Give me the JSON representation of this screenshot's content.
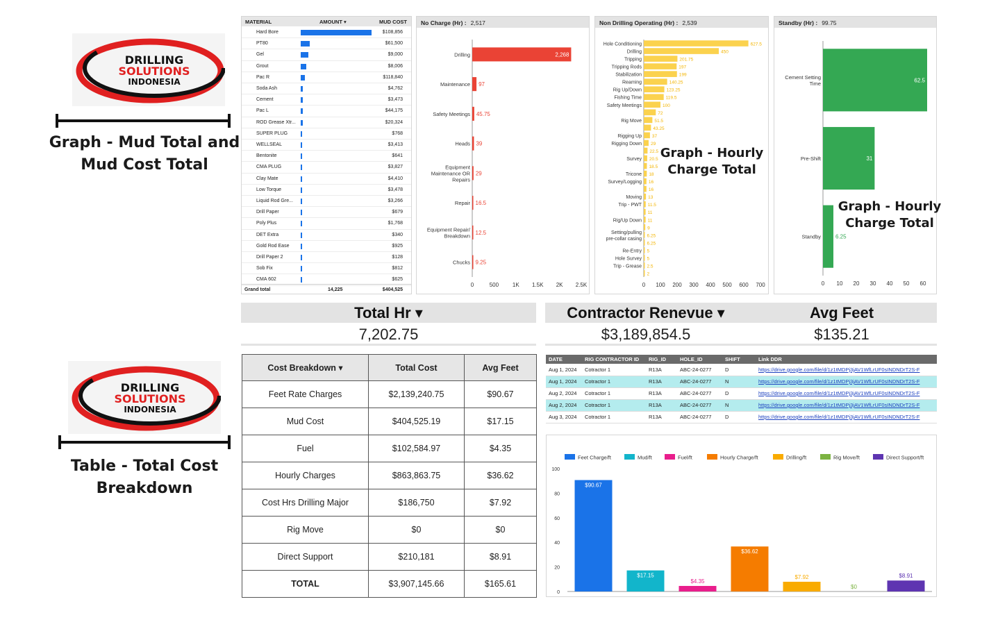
{
  "logo": {
    "line1": "DRILLING",
    "line2": "SOLUTIONS",
    "line3": "INDONESIA"
  },
  "captions": {
    "graph_mud": [
      "Graph - Mud Total and",
      "Mud Cost Total"
    ],
    "table_cost": [
      "Table - Total Cost",
      "Breakdown"
    ],
    "graph_hourly_a": [
      "Graph - Hourly",
      "Charge Total"
    ],
    "graph_hourly_b": [
      "Graph - Hourly",
      "Charge Total"
    ]
  },
  "mud_table": {
    "headers": {
      "material": "MATERIAL",
      "amount": "AMOUNT ▾",
      "cost": "MUD COST"
    },
    "rows": [
      {
        "name": "Hard Bore",
        "amount": 1060,
        "cost": "$108,856"
      },
      {
        "name": "PT80",
        "amount": 130,
        "cost": "$61,500"
      },
      {
        "name": "Gel",
        "amount": 115,
        "cost": "$9,000"
      },
      {
        "name": "Grout",
        "amount": 80,
        "cost": "$8,006"
      },
      {
        "name": "Pac R",
        "amount": 60,
        "cost": "$118,840"
      },
      {
        "name": "Soda Ash",
        "amount": 30,
        "cost": "$4,762"
      },
      {
        "name": "Cement",
        "amount": 30,
        "cost": "$3,473"
      },
      {
        "name": "Pac L",
        "amount": 28,
        "cost": "$44,175"
      },
      {
        "name": "ROD Grease Xtr...",
        "amount": 26,
        "cost": "$20,324"
      },
      {
        "name": "SUPER PLUG",
        "amount": 24,
        "cost": "$768"
      },
      {
        "name": "WELLSEAL",
        "amount": 22,
        "cost": "$3,413"
      },
      {
        "name": "Bentonite",
        "amount": 14,
        "cost": "$641"
      },
      {
        "name": "CMA PLUG",
        "amount": 12,
        "cost": "$3,827"
      },
      {
        "name": "Clay Mate",
        "amount": 12,
        "cost": "$4,410"
      },
      {
        "name": "Low Torque",
        "amount": 10,
        "cost": "$3,478"
      },
      {
        "name": "Liquid Rod Gre...",
        "amount": 10,
        "cost": "$3,266"
      },
      {
        "name": "Drill Paper",
        "amount": 8,
        "cost": "$679"
      },
      {
        "name": "Poly Plus",
        "amount": 8,
        "cost": "$1,768"
      },
      {
        "name": "DET Extra",
        "amount": 8,
        "cost": "$340"
      },
      {
        "name": "Gold Rod Ease",
        "amount": 6,
        "cost": "$925"
      },
      {
        "name": "Drill Paper 2",
        "amount": 6,
        "cost": "$128"
      },
      {
        "name": "Sob Fix",
        "amount": 4,
        "cost": "$812"
      },
      {
        "name": "CMA 602",
        "amount": 4,
        "cost": "$625"
      }
    ],
    "total": {
      "label": "Grand total",
      "amount": "14,225",
      "cost": "$404,525"
    }
  },
  "no_charge": {
    "label": "No Charge (Hr) :",
    "value": "2,517",
    "ticks": [
      "0",
      "500",
      "1K",
      "1.5K",
      "2K",
      "2.5K"
    ]
  },
  "non_drilling": {
    "label": "Non Drilling Operating (Hr) :",
    "value": "2,539",
    "ticks": [
      "0",
      "100",
      "200",
      "300",
      "400",
      "500",
      "600",
      "700"
    ]
  },
  "standby": {
    "label": "Standby (Hr) :",
    "value": "99.75",
    "ticks": [
      "0",
      "10",
      "20",
      "30",
      "40",
      "50",
      "60"
    ]
  },
  "scorecards": {
    "total_hr": {
      "label": "Total Hr ▾",
      "value": "7,202.75"
    },
    "contractor": {
      "label": "Contractor Renevue ▾",
      "value": "$3,189,854.5"
    },
    "avg_feet": {
      "label": "Avg Feet",
      "value": "$135.21"
    }
  },
  "cost_breakdown": {
    "headers": [
      "Cost Breakdown ▾",
      "Total Cost",
      "Avg Feet"
    ],
    "rows": [
      [
        "Feet Rate Charges",
        "$2,139,240.75",
        "$90.67"
      ],
      [
        "Mud Cost",
        "$404,525.19",
        "$17.15"
      ],
      [
        "Fuel",
        "$102,584.97",
        "$4.35"
      ],
      [
        "Hourly Charges",
        "$863,863.75",
        "$36.62"
      ],
      [
        "Cost Hrs Drilling Major",
        "$186,750",
        "$7.92"
      ],
      [
        "Rig Move",
        "$0",
        "$0"
      ],
      [
        "Direct Support",
        "$210,181",
        "$8.91"
      ],
      [
        "TOTAL",
        "$3,907,145.66",
        "$165.61"
      ]
    ]
  },
  "ddr": {
    "headers": [
      "DATE",
      "RIG CONTRACTOR ID",
      "RIG_ID",
      "HOLE_ID",
      "SHIFT",
      "Link DDR"
    ],
    "rows": [
      [
        "Aug 1, 2024",
        "Cotractor 1",
        "R13A",
        "ABC-24-0277",
        "D",
        "https://drive.google.com/file/d/1z1tMDPj3jAV1WfLrUF0sINDNDrT2S-F"
      ],
      [
        "Aug 1, 2024",
        "Cotractor 1",
        "R13A",
        "ABC-24-0277",
        "N",
        "https://drive.google.com/file/d/1z1tMDPj3jAV1WfLrUF0sINDNDrT2S-F"
      ],
      [
        "Aug 2, 2024",
        "Cotractor 1",
        "R13A",
        "ABC-24-0277",
        "D",
        "https://drive.google.com/file/d/1z1tMDPj3jAV1WfLrUF0sINDNDrT2S-F"
      ],
      [
        "Aug 2, 2024",
        "Cotractor 1",
        "R13A",
        "ABC-24-0277",
        "N",
        "https://drive.google.com/file/d/1z1tMDPj3jAV1WfLrUF0sINDNDrT2S-F"
      ],
      [
        "Aug 3, 2024",
        "Cotractor 1",
        "R13A",
        "ABC-24-0277",
        "D",
        "https://drive.google.com/file/d/1z1tMDPj3jAV1WfLrUF0sINDNDrT2S-F"
      ]
    ]
  },
  "colors": {
    "red": "#ea4335",
    "yellow": "#fbd24e",
    "green": "#34a853",
    "blue": "#1a73e8",
    "cyan": "#12b5cb",
    "magenta": "#e91e8c",
    "orange": "#f57c00",
    "amber": "#f9ab00",
    "lime": "#7cb342",
    "purple": "#5e35b1"
  },
  "chart_data": [
    {
      "type": "bar",
      "orientation": "horizontal",
      "title": "No Charge (Hr)",
      "categories": [
        "Drilling",
        "Maintenance",
        "Safety Meetings",
        "Heads",
        "Equipment Maintenance OR Repairs",
        "Repair",
        "Equipment Repair/ Breakdown",
        "Chucks"
      ],
      "values": [
        2268,
        97,
        45.75,
        39,
        29,
        16.5,
        12.5,
        9.25
      ],
      "labels": [
        "2,268",
        "97",
        "45.75",
        "39",
        "29",
        "16.5",
        "12.5",
        "9.25"
      ],
      "xlim": [
        0,
        2500
      ]
    },
    {
      "type": "bar",
      "orientation": "horizontal",
      "title": "Non Drilling Operating (Hr)",
      "categories": [
        "Hole Conditioning",
        "Drilling",
        "Tripping",
        "Tripping Rods",
        "Stabilization",
        "Reaming",
        "Rig Up/Down",
        "Fishing Time",
        "Safety Meetings",
        "",
        "Rig Move",
        "",
        "Rigging Up",
        "Rigging Down",
        "",
        "Survey",
        "",
        "Tricone",
        "Survey/Logging",
        "",
        "Moving",
        "Trip - PWT",
        "",
        "Rig/Up Down",
        "",
        "Setting/pulling pre-collar casing",
        "",
        "Re-Entry",
        "Hole Survey",
        "Trip - Grease",
        ""
      ],
      "values": [
        627.5,
        450,
        201.75,
        197,
        199,
        140.25,
        123.25,
        119.5,
        100,
        72,
        51.5,
        43.25,
        37,
        29,
        22.5,
        20.5,
        18.5,
        18,
        16,
        16,
        13,
        11.5,
        11,
        11,
        9,
        6.25,
        6.25,
        5,
        5,
        2.5,
        2
      ],
      "labels": [
        "627.5",
        "450",
        "201.75",
        "197",
        "199",
        "140.25",
        "123.25",
        "119.5",
        "100",
        "72",
        "51.5",
        "43.25",
        "37",
        "29",
        "22.5",
        "20.5",
        "18.5",
        "18",
        "16",
        "16",
        "13",
        "11.5",
        "11",
        "11",
        "9",
        "6.25",
        "6.25",
        "5",
        "5",
        "2.5",
        "2"
      ],
      "xlim": [
        0,
        700
      ]
    },
    {
      "type": "bar",
      "orientation": "horizontal",
      "title": "Standby (Hr)",
      "categories": [
        "Cement Setting Time",
        "Pre-Shift",
        "Standby"
      ],
      "values": [
        62.5,
        31,
        6.25
      ],
      "labels": [
        "62.5",
        "31",
        "6.25"
      ],
      "xlim": [
        0,
        65
      ]
    },
    {
      "type": "bar",
      "title": "Cost per foot breakdown",
      "categories": [
        "Feet Charge/ft",
        "Mud/ft",
        "Fuel/ft",
        "Hourly Charge/ft",
        "Drilling/ft",
        "Rig Move/ft",
        "Direct Support/ft"
      ],
      "values": [
        90.67,
        17.15,
        4.35,
        36.62,
        7.92,
        0,
        8.91
      ],
      "labels": [
        "$90.67",
        "$17.15",
        "$4.35",
        "$36.62",
        "$7.92",
        "$0",
        "$8.91"
      ],
      "yticks": [
        "0",
        "20",
        "40",
        "60",
        "80",
        "100"
      ],
      "ylim": [
        0,
        100
      ]
    }
  ]
}
